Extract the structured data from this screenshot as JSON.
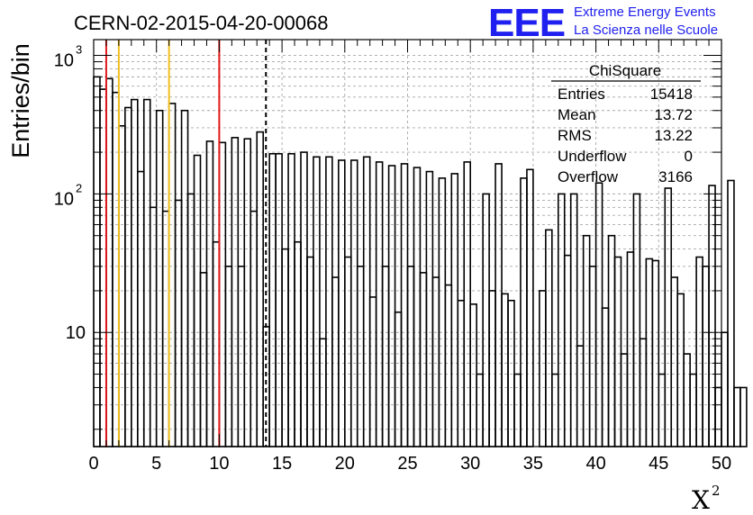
{
  "chart_data": {
    "type": "histogram",
    "title": "CERN-02-2015-04-20-00068",
    "xlabel": "X",
    "xlabel_superscript": "2",
    "ylabel": "Entries/bin",
    "xlim": [
      0,
      50
    ],
    "ylim": [
      1.5,
      1300
    ],
    "yscale": "log",
    "grid": true,
    "bin_width": 0.5,
    "x_ticks": [
      {
        "value": 0,
        "label": "0"
      },
      {
        "value": 5,
        "label": "5"
      },
      {
        "value": 10,
        "label": "10"
      },
      {
        "value": 15,
        "label": "15"
      },
      {
        "value": 20,
        "label": "20"
      },
      {
        "value": 25,
        "label": "25"
      },
      {
        "value": 30,
        "label": "30"
      },
      {
        "value": 35,
        "label": "35"
      },
      {
        "value": 40,
        "label": "40"
      },
      {
        "value": 45,
        "label": "45"
      },
      {
        "value": 50,
        "label": "50"
      }
    ],
    "y_ticks": [
      {
        "value": 10,
        "label": "10",
        "sup": ""
      },
      {
        "value": 100,
        "label": "10",
        "sup": "2"
      },
      {
        "value": 1000,
        "label": "10",
        "sup": "3"
      }
    ],
    "values": [
      700,
      570,
      680,
      540,
      310,
      420,
      480,
      145,
      480,
      80,
      400,
      75,
      450,
      90,
      400,
      100,
      190,
      27,
      240,
      45,
      235,
      30,
      255,
      30,
      250,
      75,
      280,
      11,
      195,
      195,
      40,
      195,
      45,
      200,
      35,
      185,
      9,
      185,
      25,
      175,
      35,
      175,
      30,
      185,
      18,
      170,
      30,
      160,
      14,
      165,
      30,
      155,
      27,
      145,
      25,
      130,
      22,
      140,
      17,
      170,
      16,
      5,
      100,
      20,
      165,
      19,
      17,
      5,
      130,
      150,
      1.5,
      20,
      55,
      5,
      100,
      36,
      100,
      8,
      50,
      30,
      120,
      15,
      50,
      35,
      7,
      38,
      100,
      9,
      34,
      33,
      5,
      110,
      25,
      19,
      7,
      5,
      35,
      30,
      115,
      4,
      10,
      125,
      4,
      4
    ],
    "vertical_lines": [
      {
        "x": 1,
        "color": "#e01818",
        "style": "solid"
      },
      {
        "x": 2,
        "color": "#f0be1e",
        "style": "solid"
      },
      {
        "x": 6,
        "color": "#f0be1e",
        "style": "solid"
      },
      {
        "x": 10,
        "color": "#e01818",
        "style": "solid"
      },
      {
        "x": 13.72,
        "color": "#000000",
        "style": "dashed"
      }
    ],
    "stats_box": {
      "title": "ChiSquare",
      "rows": [
        {
          "label": "Entries",
          "value": "15418"
        },
        {
          "label": "Mean",
          "value": "13.72"
        },
        {
          "label": "RMS",
          "value": "13.22"
        },
        {
          "label": "Underflow",
          "value": "0"
        },
        {
          "label": "Overflow",
          "value": "3166"
        }
      ]
    }
  },
  "logo": {
    "letters": "EEE",
    "line1": "Extreme Energy Events",
    "line2": "La Scienza nelle Scuole",
    "color": "#1f1ff0"
  }
}
